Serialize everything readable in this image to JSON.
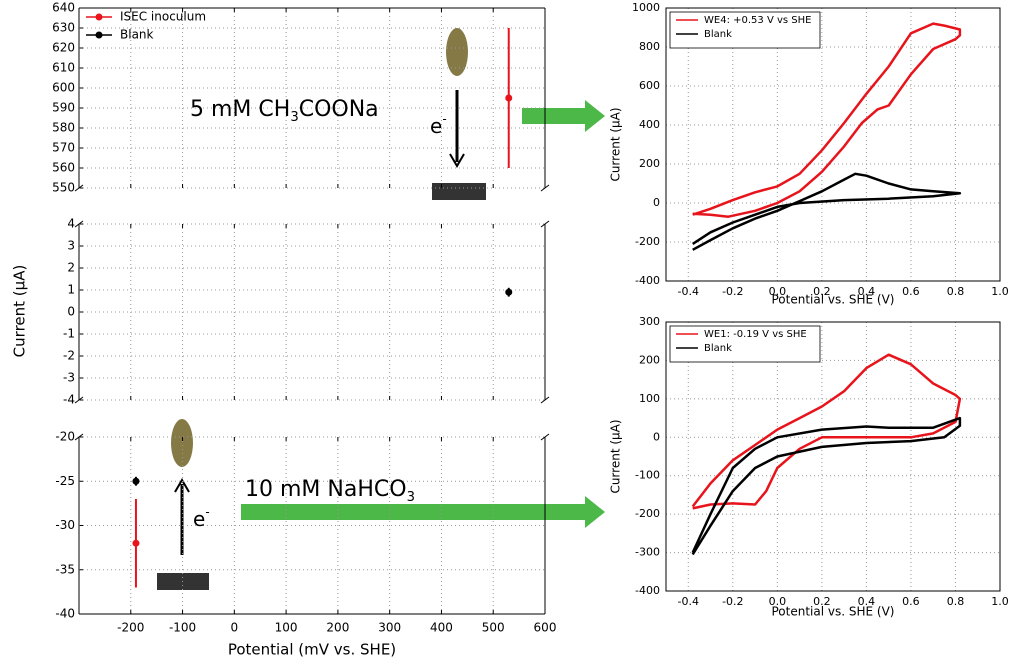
{
  "chart_data": [
    {
      "type": "errorbar",
      "ylabel": "Current (μA)",
      "xlabel": "Potential (mV vs. SHE)",
      "xlim": [
        -300,
        600
      ],
      "xticks": [
        -200,
        -100,
        0,
        100,
        200,
        300,
        400,
        500,
        600
      ],
      "panels": [
        {
          "ylim": [
            550,
            640
          ],
          "yticks": [
            550,
            560,
            570,
            580,
            590,
            600,
            610,
            620,
            630,
            640
          ]
        },
        {
          "ylim": [
            -4,
            4
          ],
          "yticks": [
            -4,
            -3,
            -2,
            -1,
            0,
            1,
            2,
            3,
            4
          ]
        },
        {
          "ylim": [
            -40,
            -20
          ],
          "yticks": [
            -40,
            -35,
            -30,
            -25,
            -20
          ]
        }
      ],
      "grid": true,
      "legend": "upper left",
      "series": [
        {
          "name": "ISEC inoculum",
          "color": "#e8141c",
          "x": [
            530,
            -190
          ],
          "values": [
            595,
            -32
          ],
          "errors": [
            35,
            5
          ]
        },
        {
          "name": "Blank",
          "color": "#000000",
          "x": [
            530,
            -190
          ],
          "values": [
            0.9,
            -25
          ],
          "errors": [
            0.2,
            0.5
          ]
        }
      ],
      "annotations": [
        {
          "parts": [
            "5 mM CH",
            "3",
            "COONa"
          ]
        },
        {
          "parts": [
            "10 mM NaHCO",
            "3"
          ]
        },
        {
          "parts": [
            "e",
            "-"
          ]
        },
        {
          "parts": [
            "e",
            "-"
          ]
        }
      ]
    },
    {
      "type": "line",
      "xlabel": "Potential vs. SHE (V)",
      "ylabel": "Current (μA)",
      "xlim": [
        -0.5,
        1.0
      ],
      "xticks": [
        -0.4,
        -0.2,
        {
          "value": 0,
          "label": "0.0"
        },
        0.2,
        0.4,
        0.6,
        0.8,
        {
          "value": 1,
          "label": "1.0"
        }
      ],
      "ylim": [
        -400,
        1000
      ],
      "yticks": [
        -400,
        -200,
        0,
        200,
        400,
        600,
        800,
        1000
      ],
      "grid": true,
      "legend": "upper left",
      "series": [
        {
          "name": "WE4: +0.53 V vs SHE",
          "color": "#e8141c",
          "x": [
            -0.38,
            -0.3,
            -0.22,
            -0.1,
            0,
            0.1,
            0.2,
            0.3,
            0.38,
            0.45,
            0.5,
            0.6,
            0.7,
            0.8,
            0.82,
            0.82,
            0.75,
            0.7,
            0.6,
            0.5,
            0.4,
            0.3,
            0.2,
            0.1,
            0,
            -0.1,
            -0.2,
            -0.3,
            -0.38
          ],
          "values": [
            -55,
            -60,
            -70,
            -40,
            0,
            60,
            160,
            290,
            410,
            480,
            500,
            660,
            790,
            840,
            860,
            890,
            910,
            920,
            870,
            700,
            560,
            410,
            270,
            150,
            85,
            55,
            15,
            -30,
            -60
          ]
        },
        {
          "name": "Blank",
          "color": "#000000",
          "x": [
            -0.38,
            -0.3,
            -0.2,
            -0.1,
            0,
            0.1,
            0.2,
            0.3,
            0.35,
            0.4,
            0.5,
            0.6,
            0.7,
            0.82,
            0.7,
            0.5,
            0.3,
            0.1,
            0,
            -0.1,
            -0.2,
            -0.3,
            -0.38
          ],
          "values": [
            -240,
            -190,
            -130,
            -80,
            -40,
            10,
            60,
            120,
            150,
            140,
            100,
            70,
            60,
            50,
            35,
            22,
            15,
            0,
            -20,
            -60,
            -100,
            -150,
            -210
          ]
        }
      ]
    },
    {
      "type": "line",
      "xlabel": "Potential vs. SHE (V)",
      "ylabel": "Current (μA)",
      "xlim": [
        -0.5,
        1.0
      ],
      "xticks": [
        -0.4,
        -0.2,
        {
          "value": 0,
          "label": "0.0"
        },
        0.2,
        0.4,
        0.6,
        0.8,
        {
          "value": 1,
          "label": "1.0"
        }
      ],
      "ylim": [
        -400,
        300
      ],
      "yticks": [
        -400,
        -300,
        -200,
        -100,
        0,
        100,
        200,
        300
      ],
      "grid": true,
      "legend": "upper left",
      "series": [
        {
          "name": "WE1: -0.19 V vs SHE",
          "color": "#e8141c",
          "x": [
            -0.38,
            -0.3,
            -0.2,
            -0.1,
            -0.05,
            0,
            0.1,
            0.2,
            0.4,
            0.6,
            0.7,
            0.8,
            0.82,
            0.8,
            0.7,
            0.6,
            0.5,
            0.4,
            0.3,
            0.2,
            0.1,
            0,
            -0.1,
            -0.2,
            -0.3,
            -0.38
          ],
          "values": [
            -185,
            -175,
            -172,
            -175,
            -140,
            -80,
            -30,
            0,
            0,
            0,
            10,
            40,
            100,
            110,
            140,
            190,
            215,
            180,
            120,
            80,
            50,
            20,
            -20,
            -60,
            -120,
            -180
          ]
        },
        {
          "name": "Blank",
          "color": "#000000",
          "x": [
            -0.38,
            -0.3,
            -0.2,
            -0.1,
            0,
            0.2,
            0.4,
            0.6,
            0.75,
            0.82,
            0.82,
            0.7,
            0.5,
            0.4,
            0.2,
            0,
            -0.1,
            -0.2,
            -0.3,
            -0.38
          ],
          "values": [
            -305,
            -230,
            -140,
            -80,
            -50,
            -25,
            -15,
            -10,
            0,
            30,
            50,
            25,
            25,
            28,
            20,
            0,
            -30,
            -80,
            -200,
            -300
          ]
        }
      ]
    }
  ]
}
